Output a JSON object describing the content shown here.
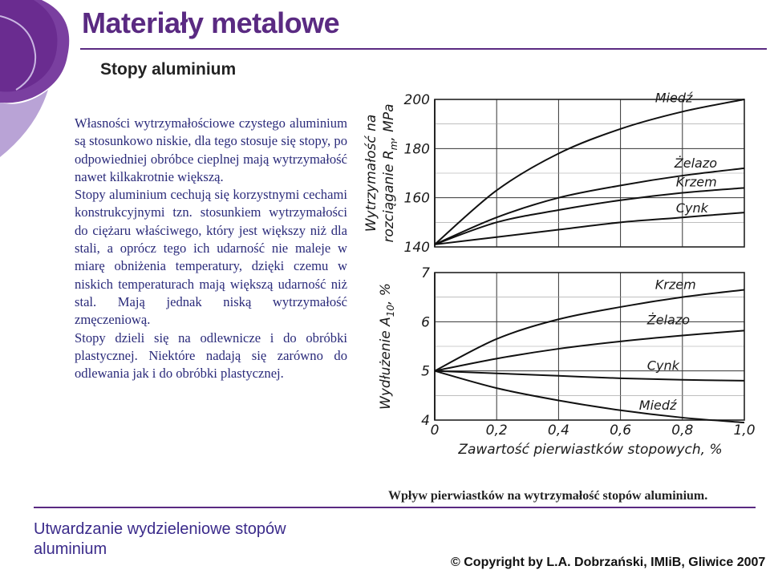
{
  "header": {
    "title": "Materiały metalowe",
    "subtitle": "Stopy aluminium"
  },
  "body_text": {
    "paragraph_1": "Własności wytrzymałościowe czystego aluminium są stosunkowo niskie, dla tego stosuje się stopy, po odpowiedniej obróbce cieplnej mają wytrzymałość nawet kilkakrotnie większą.",
    "paragraph_2": "Stopy aluminium cechują się korzystnymi cechami konstrukcyjnymi tzn. stosunkiem wytrzymałości do ciężaru właściwego, który jest większy niż dla stali, a oprócz tego ich udarność nie maleje w miarę obniżenia temperatury, dzięki czemu w niskich temperaturach mają większą udarność niż stal. Mają jednak niską wytrzymałość zmęczeniową.",
    "paragraph_3": "Stopy dzieli się na odlewnicze i do obróbki plastycznej. Niektóre nadają się zarówno do odlewania jak i do obróbki plastycznej."
  },
  "figure_caption": "Wpływ pierwiastków na wytrzymałość stopów aluminium.",
  "footer": {
    "section_title": "Utwardzanie wydzieleniowe stopów aluminium",
    "copyright": "© Copyright by L.A. Dobrzański, IMIiB, Gliwice 2007"
  },
  "colors": {
    "accent": "#5a2a82",
    "text_blue": "#2a2a7a",
    "footer_blue": "#3a2a8a"
  },
  "chart_data": [
    {
      "type": "line",
      "xlabel": "Zawartość pierwiastków stopowych, %",
      "ylabel_line1": "Wytrzymałość na",
      "ylabel_line2": "rozciąganie R",
      "ylabel_sub": "m",
      "ylabel_unit": ", MPa",
      "x_ticks": [
        "0",
        "0,2",
        "0,4",
        "0,6",
        "0,8",
        "1,0"
      ],
      "x_tick_values": [
        0,
        0.2,
        0.4,
        0.6,
        0.8,
        1.0
      ],
      "y_ticks": [
        "200",
        "180",
        "160",
        "140"
      ],
      "y_tick_values": [
        200,
        180,
        160,
        140
      ],
      "ylim": [
        140,
        200
      ],
      "grid": true,
      "series": [
        {
          "name": "Miedź",
          "x": [
            0,
            0.2,
            0.4,
            0.6,
            0.8,
            1.0
          ],
          "y": [
            141,
            163,
            178,
            188,
            195,
            200
          ]
        },
        {
          "name": "Żelazo",
          "x": [
            0,
            0.2,
            0.4,
            0.6,
            0.8,
            1.0
          ],
          "y": [
            141,
            152,
            160,
            165,
            169,
            172
          ]
        },
        {
          "name": "Krzem",
          "x": [
            0,
            0.2,
            0.4,
            0.6,
            0.8,
            1.0
          ],
          "y": [
            141,
            150,
            155,
            159,
            162,
            164
          ]
        },
        {
          "name": "Cynk",
          "x": [
            0,
            0.2,
            0.4,
            0.6,
            0.8,
            1.0
          ],
          "y": [
            141,
            144,
            147,
            150,
            152,
            154
          ]
        }
      ]
    },
    {
      "type": "line",
      "xlabel": "Zawartość pierwiastków stopowych, %",
      "ylabel_line1": "Wydłużenie A",
      "ylabel_sub": "10",
      "ylabel_unit": ", %",
      "x_ticks": [
        "0",
        "0,2",
        "0,4",
        "0,6",
        "0,8",
        "1,0"
      ],
      "x_tick_values": [
        0,
        0.2,
        0.4,
        0.6,
        0.8,
        1.0
      ],
      "y_ticks": [
        "7",
        "6",
        "5",
        "4"
      ],
      "y_tick_values": [
        7,
        6,
        5,
        4
      ],
      "ylim": [
        4,
        7
      ],
      "grid": true,
      "series": [
        {
          "name": "Krzem",
          "x": [
            0,
            0.2,
            0.4,
            0.6,
            0.8,
            1.0
          ],
          "y": [
            5.0,
            5.65,
            6.05,
            6.3,
            6.5,
            6.65
          ]
        },
        {
          "name": "Żelazo",
          "x": [
            0,
            0.2,
            0.4,
            0.6,
            0.8,
            1.0
          ],
          "y": [
            5.0,
            5.25,
            5.45,
            5.6,
            5.72,
            5.82
          ]
        },
        {
          "name": "Cynk",
          "x": [
            0,
            0.2,
            0.4,
            0.6,
            0.8,
            1.0
          ],
          "y": [
            5.0,
            4.95,
            4.9,
            4.85,
            4.82,
            4.8
          ]
        },
        {
          "name": "Miedź",
          "x": [
            0,
            0.2,
            0.4,
            0.6,
            0.8,
            1.0
          ],
          "y": [
            5.0,
            4.65,
            4.4,
            4.2,
            4.05,
            3.95
          ]
        }
      ]
    }
  ]
}
